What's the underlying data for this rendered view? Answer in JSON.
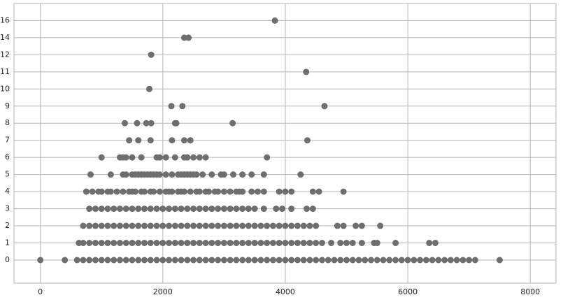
{
  "chart_data": {
    "type": "scatter",
    "color": "#6e6e6e",
    "grid": true,
    "xlim": [
      -430,
      8420
    ],
    "xticks": [
      0,
      2000,
      4000,
      6000,
      8000
    ],
    "yticks": [
      0,
      1,
      2,
      3,
      4,
      5,
      6,
      7,
      8,
      9,
      10,
      11,
      12,
      14,
      16
    ],
    "series": [
      {
        "y": 0,
        "x": [
          0,
          400,
          600,
          700,
          800,
          900,
          1000,
          1100,
          1200,
          1300,
          1400,
          1500,
          1600,
          1700,
          1800,
          1900,
          2000,
          2100,
          2200,
          2300,
          2400,
          2500,
          2600,
          2700,
          2800,
          2900,
          3000,
          3100,
          3200,
          3300,
          3400,
          3500,
          3600,
          3700,
          3800,
          3900,
          4000,
          4100,
          4200,
          4300,
          4400,
          4500,
          4600,
          4700,
          4800,
          4900,
          5000,
          5100,
          5200,
          5300,
          5400,
          5500,
          5600,
          5700,
          5800,
          5900,
          6000,
          6100,
          6200,
          6300,
          6400,
          6500,
          6600,
          6700,
          6800,
          6900,
          7000,
          7100,
          7500
        ]
      },
      {
        "y": 1,
        "x": [
          630,
          700,
          800,
          900,
          1000,
          1100,
          1200,
          1300,
          1400,
          1500,
          1600,
          1700,
          1800,
          1900,
          2000,
          2100,
          2200,
          2300,
          2400,
          2500,
          2600,
          2700,
          2800,
          2900,
          3000,
          3100,
          3200,
          3300,
          3400,
          3500,
          3600,
          3700,
          3800,
          3900,
          4000,
          4100,
          4200,
          4300,
          4400,
          4500,
          4600,
          4750,
          4900,
          5000,
          5100,
          5250,
          5450,
          5500,
          5800,
          6350,
          6450
        ]
      },
      {
        "y": 2,
        "x": [
          700,
          800,
          900,
          1000,
          1100,
          1200,
          1300,
          1400,
          1500,
          1600,
          1700,
          1800,
          1900,
          2000,
          2100,
          2200,
          2300,
          2400,
          2500,
          2600,
          2700,
          2800,
          2900,
          3000,
          3100,
          3200,
          3300,
          3400,
          3500,
          3600,
          3700,
          3800,
          3900,
          4000,
          4100,
          4200,
          4300,
          4400,
          4500,
          4850,
          4950,
          5150,
          5250,
          5550
        ]
      },
      {
        "y": 3,
        "x": [
          800,
          900,
          1000,
          1100,
          1200,
          1300,
          1400,
          1500,
          1600,
          1700,
          1800,
          1900,
          2000,
          2100,
          2200,
          2300,
          2400,
          2500,
          2600,
          2700,
          2800,
          2900,
          3000,
          3100,
          3200,
          3300,
          3400,
          3500,
          3650,
          3850,
          3950,
          4100,
          4350,
          4450
        ]
      },
      {
        "y": 4,
        "x": [
          750,
          850,
          950,
          1000,
          1100,
          1150,
          1250,
          1350,
          1450,
          1500,
          1550,
          1650,
          1700,
          1800,
          1850,
          1950,
          2050,
          2100,
          2150,
          2250,
          2300,
          2350,
          2450,
          2550,
          2600,
          2700,
          2750,
          2850,
          2900,
          3000,
          3100,
          3200,
          3250,
          3300,
          3450,
          3550,
          3650,
          3900,
          4000,
          4100,
          4450,
          4550,
          4950
        ]
      },
      {
        "y": 5,
        "x": [
          820,
          1150,
          1350,
          1400,
          1500,
          1550,
          1600,
          1650,
          1700,
          1750,
          1800,
          1850,
          1900,
          1950,
          2050,
          2150,
          2250,
          2300,
          2350,
          2400,
          2450,
          2500,
          2550,
          2650,
          2800,
          2950,
          3000,
          3150,
          3300,
          3450,
          3650,
          4250
        ]
      },
      {
        "y": 6,
        "x": [
          1000,
          1300,
          1350,
          1400,
          1500,
          1650,
          1900,
          1950,
          2050,
          2200,
          2350,
          2400,
          2500,
          2600,
          2700,
          3700
        ]
      },
      {
        "y": 7,
        "x": [
          1450,
          1600,
          1800,
          2150,
          2350,
          2450,
          4360
        ]
      },
      {
        "y": 8,
        "x": [
          1380,
          1580,
          1730,
          1810,
          2200,
          2220,
          3140
        ]
      },
      {
        "y": 9,
        "x": [
          2140,
          2320,
          4640
        ]
      },
      {
        "y": 10,
        "x": [
          1780
        ]
      },
      {
        "y": 11,
        "x": [
          4340
        ]
      },
      {
        "y": 12,
        "x": [
          1810
        ]
      },
      {
        "y": 14,
        "x": [
          2350,
          2420
        ]
      },
      {
        "y": 16,
        "x": [
          3830
        ]
      }
    ]
  }
}
